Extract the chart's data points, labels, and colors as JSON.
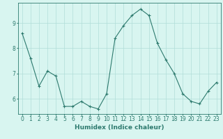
{
  "x": [
    0,
    1,
    2,
    3,
    4,
    5,
    6,
    7,
    8,
    9,
    10,
    11,
    12,
    13,
    14,
    15,
    16,
    17,
    18,
    19,
    20,
    21,
    22,
    23
  ],
  "y": [
    8.6,
    7.6,
    6.5,
    7.1,
    6.9,
    5.7,
    5.7,
    5.9,
    5.7,
    5.6,
    6.2,
    8.4,
    8.9,
    9.3,
    9.55,
    9.3,
    8.2,
    7.55,
    7.0,
    6.2,
    5.9,
    5.8,
    6.3,
    6.65
  ],
  "line_color": "#2d7a6e",
  "marker": "+",
  "marker_size": 3,
  "bg_color": "#d8f5f0",
  "grid_color": "#b0ddd8",
  "xlabel": "Humidex (Indice chaleur)",
  "ylim": [
    5.4,
    9.8
  ],
  "yticks": [
    6,
    7,
    8,
    9
  ],
  "xticks": [
    0,
    1,
    2,
    3,
    4,
    5,
    6,
    7,
    8,
    9,
    10,
    11,
    12,
    13,
    14,
    15,
    16,
    17,
    18,
    19,
    20,
    21,
    22,
    23
  ],
  "tick_color": "#2d7a6e",
  "axis_color": "#2d7a6e",
  "label_fontsize": 5.5,
  "xlabel_fontsize": 6.5
}
